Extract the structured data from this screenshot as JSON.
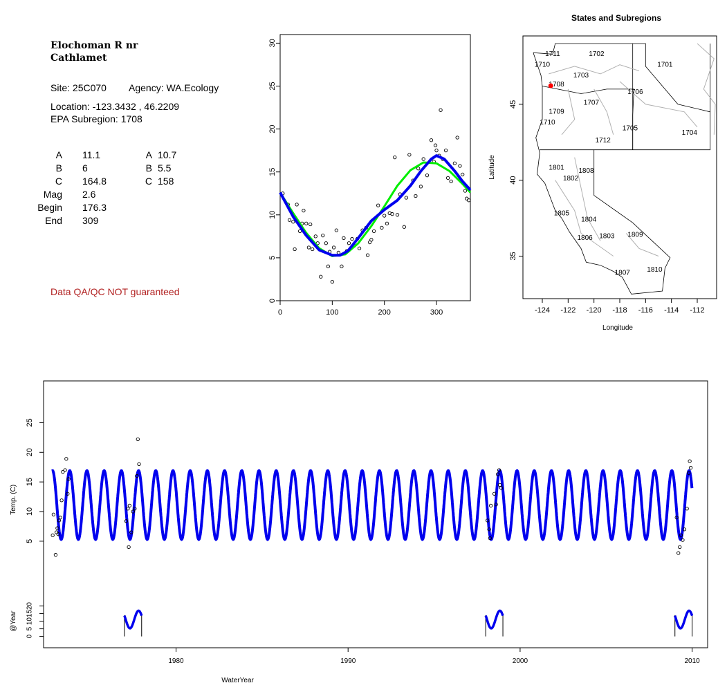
{
  "info": {
    "site_name_line1": "Elochoman R nr",
    "site_name_line2": "Cathlamet",
    "site": "Site: 25C070",
    "agency": "Agency: WA.Ecology",
    "location": "Location: -123.3432 , 46.2209",
    "subregion": "EPA Subregion: 1708",
    "params_left": [
      {
        "label": "A",
        "value": "11.1"
      },
      {
        "label": "B",
        "value": "6"
      },
      {
        "label": "C",
        "value": "164.8"
      },
      {
        "label": "Mag",
        "value": "2.6"
      },
      {
        "label": "Begin",
        "value": "176.3"
      },
      {
        "label": "End",
        "value": "309"
      }
    ],
    "params_right": [
      {
        "label": "A",
        "value": "10.7"
      },
      {
        "label": "B",
        "value": "5.5"
      },
      {
        "label": "C",
        "value": "158"
      }
    ],
    "qa_note": "Data QA/QC NOT guaranteed",
    "qa_color": "#b22222"
  },
  "chart_data": [
    {
      "type": "scatter",
      "title": "",
      "xlabel": "",
      "ylabel": "",
      "xlim": [
        0,
        365
      ],
      "ylim": [
        0,
        31
      ],
      "x_ticks": [
        0,
        100,
        200,
        300
      ],
      "y_ticks": [
        0,
        5,
        10,
        15,
        20,
        25,
        30
      ],
      "series": [
        {
          "name": "",
          "kind": "points",
          "color": "#000000",
          "x": [
            5,
            15,
            18,
            25,
            28,
            32,
            38,
            42,
            45,
            50,
            55,
            58,
            62,
            68,
            72,
            78,
            82,
            88,
            92,
            95,
            100,
            103,
            108,
            112,
            118,
            122,
            128,
            132,
            138,
            142,
            148,
            152,
            158,
            165,
            168,
            172,
            175,
            180,
            188,
            195,
            200,
            205,
            210,
            215,
            220,
            225,
            230,
            238,
            242,
            248,
            255,
            260,
            265,
            270,
            275,
            282,
            290,
            295,
            298,
            300,
            305,
            308,
            312,
            318,
            322,
            328,
            335,
            340,
            345,
            350,
            355,
            358,
            362
          ],
          "y": [
            12.5,
            11.2,
            9.4,
            9.2,
            6.0,
            11.2,
            8.1,
            9.0,
            10.5,
            9.0,
            6.2,
            8.9,
            6.0,
            7.5,
            6.7,
            2.8,
            7.6,
            6.7,
            4.0,
            5.7,
            2.2,
            6.2,
            8.2,
            5.6,
            4.0,
            7.3,
            5.8,
            6.7,
            7.2,
            6.4,
            7.2,
            6.1,
            8.2,
            8.5,
            5.3,
            6.8,
            7.1,
            8.1,
            11.1,
            8.5,
            9.9,
            9.0,
            10.2,
            10.1,
            16.7,
            10.0,
            12.4,
            8.6,
            12.0,
            17.0,
            14.0,
            12.2,
            15.4,
            13.3,
            16.5,
            14.6,
            18.7,
            16.2,
            18.1,
            17.5,
            16.9,
            22.2,
            16.5,
            17.5,
            14.3,
            13.9,
            16.0,
            19.0,
            15.7,
            14.7,
            12.8,
            11.9,
            11.7
          ]
        },
        {
          "name": "",
          "kind": "fit-line",
          "color": "#00ee00",
          "x": [
            0,
            25,
            50,
            75,
            100,
            125,
            150,
            175,
            200,
            225,
            250,
            275,
            300,
            325,
            350,
            365
          ],
          "y": [
            12.6,
            10.2,
            7.9,
            6.1,
            5.2,
            5.4,
            6.7,
            8.7,
            11.0,
            13.4,
            15.2,
            16.1,
            16.0,
            15.1,
            13.6,
            12.6
          ]
        },
        {
          "name": "",
          "kind": "fit-line",
          "color": "#0000ee",
          "x": [
            0,
            25,
            50,
            75,
            100,
            115,
            130,
            150,
            175,
            200,
            225,
            250,
            270,
            290,
            300,
            315,
            335,
            350,
            365
          ],
          "y": [
            12.6,
            9.8,
            7.6,
            5.9,
            5.3,
            5.3,
            5.8,
            7.3,
            9.3,
            10.6,
            11.7,
            13.4,
            15.1,
            16.5,
            16.9,
            16.5,
            15.1,
            13.9,
            12.9
          ]
        }
      ]
    },
    {
      "type": "map",
      "title": "States and Subregions",
      "xlabel": "Longitude",
      "ylabel": "Latitude",
      "xlim": [
        -125.5,
        -110.5
      ],
      "ylim": [
        32.2,
        49.5
      ],
      "x_ticks": [
        -124,
        -122,
        -120,
        -118,
        -116,
        -114,
        -112
      ],
      "y_ticks": [
        35,
        40,
        45
      ],
      "site_point": {
        "lon": -123.3432,
        "lat": 46.2209,
        "color": "#ff0000"
      },
      "region_labels": [
        {
          "text": "1711",
          "lon": -123.2,
          "lat": 48.3
        },
        {
          "text": "1702",
          "lon": -119.8,
          "lat": 48.3
        },
        {
          "text": "1701",
          "lon": -114.5,
          "lat": 47.6
        },
        {
          "text": "1710",
          "lon": -124.0,
          "lat": 47.6
        },
        {
          "text": "1703",
          "lon": -121.0,
          "lat": 46.9
        },
        {
          "text": "1708",
          "lon": -122.9,
          "lat": 46.3
        },
        {
          "text": "1706",
          "lon": -116.8,
          "lat": 45.8
        },
        {
          "text": "1707",
          "lon": -120.2,
          "lat": 45.1
        },
        {
          "text": "1709",
          "lon": -122.9,
          "lat": 44.5
        },
        {
          "text": "1710",
          "lon": -123.6,
          "lat": 43.8
        },
        {
          "text": "1705",
          "lon": -117.2,
          "lat": 43.4
        },
        {
          "text": "1704",
          "lon": -112.6,
          "lat": 43.1
        },
        {
          "text": "1712",
          "lon": -119.3,
          "lat": 42.6
        },
        {
          "text": "1801",
          "lon": -122.9,
          "lat": 40.8
        },
        {
          "text": "1808",
          "lon": -120.6,
          "lat": 40.6
        },
        {
          "text": "1802",
          "lon": -121.8,
          "lat": 40.1
        },
        {
          "text": "1805",
          "lon": -122.5,
          "lat": 37.8
        },
        {
          "text": "1804",
          "lon": -120.4,
          "lat": 37.4
        },
        {
          "text": "1806",
          "lon": -120.7,
          "lat": 36.2
        },
        {
          "text": "1803",
          "lon": -119.0,
          "lat": 36.3
        },
        {
          "text": "1809",
          "lon": -116.8,
          "lat": 36.4
        },
        {
          "text": "1807",
          "lon": -117.8,
          "lat": 33.9
        },
        {
          "text": "1810",
          "lon": -115.3,
          "lat": 34.1
        }
      ]
    },
    {
      "type": "line",
      "title": "",
      "xlabel": "WaterYear",
      "ylabel": "Temp. (C)",
      "xlim": [
        1972.3,
        2010.9
      ],
      "ylim": [
        -0.5,
        31
      ],
      "x_ticks": [
        1980,
        1990,
        2000,
        2010
      ],
      "y_ticks": [
        5,
        10,
        15,
        20,
        25
      ],
      "series": [
        {
          "name": "",
          "kind": "seasonal-fit",
          "color": "#0000ee",
          "x_start": 1972.8,
          "x_end": 2009.99,
          "amplitude": 5.8,
          "mean": 11.1,
          "phase_day": 300,
          "min_day": 105
        },
        {
          "name": "",
          "kind": "points",
          "color": "#000000",
          "x": [
            1972.83,
            1972.88,
            1973.0,
            1973.05,
            1973.1,
            1973.15,
            1973.2,
            1973.28,
            1973.35,
            1973.42,
            1973.55,
            1973.62,
            1973.7,
            1973.75,
            1977.1,
            1977.2,
            1977.25,
            1977.3,
            1977.4,
            1977.5,
            1977.6,
            1977.72,
            1977.78,
            1977.85,
            1998.1,
            1998.2,
            1998.25,
            1998.3,
            1998.5,
            1998.6,
            1998.7,
            1998.78,
            1998.82,
            1998.9,
            2009.1,
            2009.2,
            2009.28,
            2009.35,
            2009.45,
            2009.55,
            2009.7,
            2009.8,
            2009.86,
            2009.92
          ],
          "y": [
            6.0,
            9.5,
            2.7,
            6.5,
            7.2,
            6.2,
            8.5,
            9.0,
            11.9,
            16.7,
            17.0,
            18.9,
            13.0,
            15.5,
            8.4,
            10.5,
            4.0,
            11.0,
            6.5,
            10.0,
            10.5,
            16.0,
            22.2,
            18.0,
            8.5,
            7.0,
            5.5,
            11.0,
            13.0,
            11.2,
            16.3,
            17.0,
            14.5,
            14.0,
            9.0,
            3.0,
            4.0,
            6.0,
            5.2,
            7.0,
            10.5,
            16.5,
            18.5,
            17.4
          ]
        }
      ]
    },
    {
      "type": "line",
      "title": "",
      "xlabel": "",
      "ylabel": "@Year",
      "ylim": [
        -2,
        23
      ],
      "y_ticks": [
        0,
        5,
        10,
        15,
        20
      ],
      "event_years": [
        1977,
        1998,
        2009
      ]
    }
  ]
}
